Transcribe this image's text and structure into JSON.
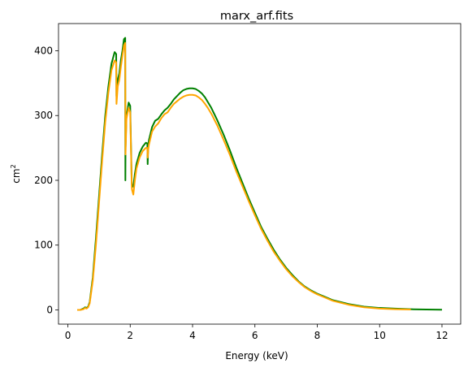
{
  "chart_data": {
    "type": "line",
    "title": "marx_arf.fits",
    "xlabel": "Energy (keV)",
    "ylabel": "cm",
    "ylabel_superscript": "2",
    "xlim": [
      -0.3,
      12.6
    ],
    "ylim": [
      -22,
      442
    ],
    "xticks": [
      0,
      2,
      4,
      6,
      8,
      10,
      12
    ],
    "yticks": [
      0,
      100,
      200,
      300,
      400
    ],
    "grid": false,
    "series": [
      {
        "color": "#008000",
        "x": [
          0.3,
          0.4,
          0.5,
          0.55,
          0.6,
          0.65,
          0.7,
          0.8,
          0.9,
          1.0,
          1.1,
          1.2,
          1.3,
          1.4,
          1.5,
          1.55,
          1.56,
          1.6,
          1.65,
          1.7,
          1.75,
          1.8,
          1.84,
          1.845,
          1.85,
          1.88,
          1.9,
          1.95,
          2.0,
          2.05,
          2.06,
          2.1,
          2.15,
          2.2,
          2.3,
          2.4,
          2.5,
          2.55,
          2.56,
          2.58,
          2.6,
          2.65,
          2.7,
          2.8,
          2.9,
          3.0,
          3.1,
          3.2,
          3.3,
          3.4,
          3.5,
          3.6,
          3.7,
          3.8,
          3.9,
          4.0,
          4.1,
          4.2,
          4.3,
          4.4,
          4.5,
          4.6,
          4.8,
          5.0,
          5.2,
          5.4,
          5.6,
          5.8,
          6.0,
          6.2,
          6.4,
          6.6,
          6.8,
          7.0,
          7.2,
          7.4,
          7.6,
          7.8,
          8.0,
          8.2,
          8.5,
          9.0,
          9.5,
          10.0,
          10.5,
          11.0,
          11.5,
          12.0
        ],
        "values": [
          0,
          0,
          2,
          4,
          3,
          5,
          12,
          50,
          110,
          175,
          240,
          300,
          345,
          380,
          398,
          395,
          330,
          355,
          365,
          385,
          400,
          418,
          420,
          200,
          250,
          300,
          305,
          320,
          315,
          195,
          192,
          190,
          210,
          225,
          242,
          252,
          258,
          257,
          225,
          255,
          262,
          272,
          282,
          292,
          295,
          302,
          308,
          312,
          318,
          325,
          330,
          335,
          339,
          341,
          342,
          342,
          341,
          338,
          334,
          328,
          320,
          312,
          292,
          270,
          246,
          220,
          196,
          172,
          150,
          128,
          110,
          93,
          78,
          65,
          54,
          44,
          36,
          30,
          25,
          21,
          15,
          9,
          5,
          3,
          2,
          1,
          0.5,
          0.3
        ]
      },
      {
        "color": "#ffa500",
        "x": [
          0.3,
          0.4,
          0.5,
          0.55,
          0.6,
          0.65,
          0.7,
          0.8,
          0.9,
          1.0,
          1.1,
          1.2,
          1.3,
          1.4,
          1.5,
          1.55,
          1.56,
          1.6,
          1.65,
          1.7,
          1.75,
          1.8,
          1.84,
          1.85,
          1.88,
          1.9,
          1.95,
          2.0,
          2.05,
          2.06,
          2.1,
          2.15,
          2.2,
          2.3,
          2.4,
          2.5,
          2.55,
          2.56,
          2.58,
          2.6,
          2.65,
          2.7,
          2.8,
          2.9,
          3.0,
          3.1,
          3.2,
          3.3,
          3.4,
          3.5,
          3.6,
          3.7,
          3.8,
          3.9,
          4.0,
          4.1,
          4.2,
          4.3,
          4.4,
          4.5,
          4.6,
          4.8,
          5.0,
          5.2,
          5.4,
          5.6,
          5.8,
          6.0,
          6.2,
          6.4,
          6.6,
          6.8,
          7.0,
          7.2,
          7.4,
          7.6,
          7.8,
          8.0,
          8.2,
          8.5,
          9.0,
          9.5,
          10.0,
          10.5,
          11.0
        ],
        "values": [
          0,
          0,
          1,
          3,
          2,
          4,
          10,
          45,
          100,
          165,
          230,
          290,
          335,
          370,
          385,
          382,
          318,
          345,
          355,
          375,
          392,
          408,
          412,
          240,
          295,
          300,
          312,
          305,
          190,
          185,
          178,
          200,
          218,
          235,
          245,
          250,
          250,
          235,
          248,
          255,
          265,
          275,
          283,
          288,
          296,
          302,
          305,
          312,
          318,
          322,
          326,
          329,
          331,
          332,
          332,
          331,
          328,
          324,
          318,
          311,
          303,
          284,
          262,
          239,
          214,
          191,
          168,
          146,
          125,
          107,
          90,
          76,
          63,
          52,
          43,
          35,
          29,
          24,
          20,
          14,
          8,
          4,
          2,
          1,
          0.5
        ]
      }
    ]
  }
}
